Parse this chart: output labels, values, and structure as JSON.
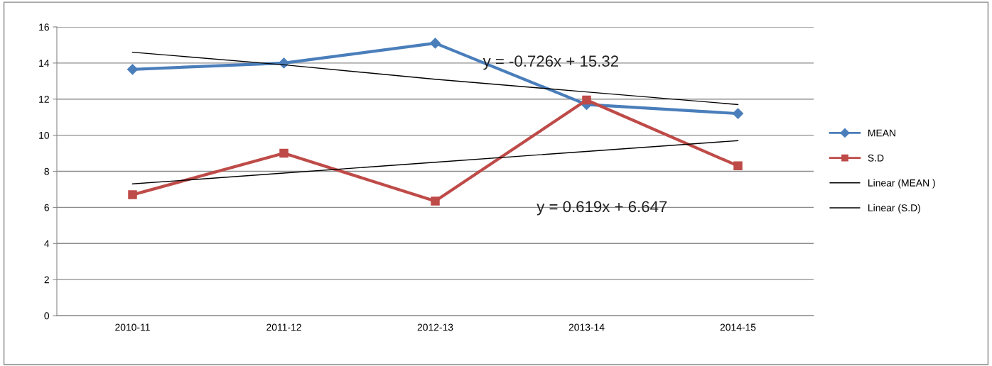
{
  "chart_data": {
    "type": "line",
    "categories": [
      "2010-11",
      "2011-12",
      "2012-13",
      "2013-14",
      "2014-15"
    ],
    "series": [
      {
        "name": "MEAN",
        "color": "#4a7ebb",
        "marker": "diamond",
        "values": [
          13.65,
          14.0,
          15.1,
          11.7,
          11.2
        ]
      },
      {
        "name": "S.D",
        "color": "#be4b48",
        "marker": "square",
        "values": [
          6.7,
          9.0,
          6.35,
          11.95,
          8.3
        ]
      },
      {
        "name": "Linear (MEAN )",
        "color": "#000000",
        "marker": "none",
        "values": [
          14.6,
          13.9,
          13.1,
          12.4,
          11.7
        ]
      },
      {
        "name": "Linear (S.D)",
        "color": "#000000",
        "marker": "none",
        "values": [
          7.3,
          7.9,
          8.5,
          9.1,
          9.7
        ]
      }
    ],
    "ylim": [
      0,
      16
    ],
    "yticks": [
      0,
      2,
      4,
      6,
      8,
      10,
      12,
      14,
      16
    ],
    "grid": "y",
    "legend": "right",
    "annotations": [
      "y = -0.726x + 15.32",
      "y = 0.619x + 6.647"
    ]
  }
}
